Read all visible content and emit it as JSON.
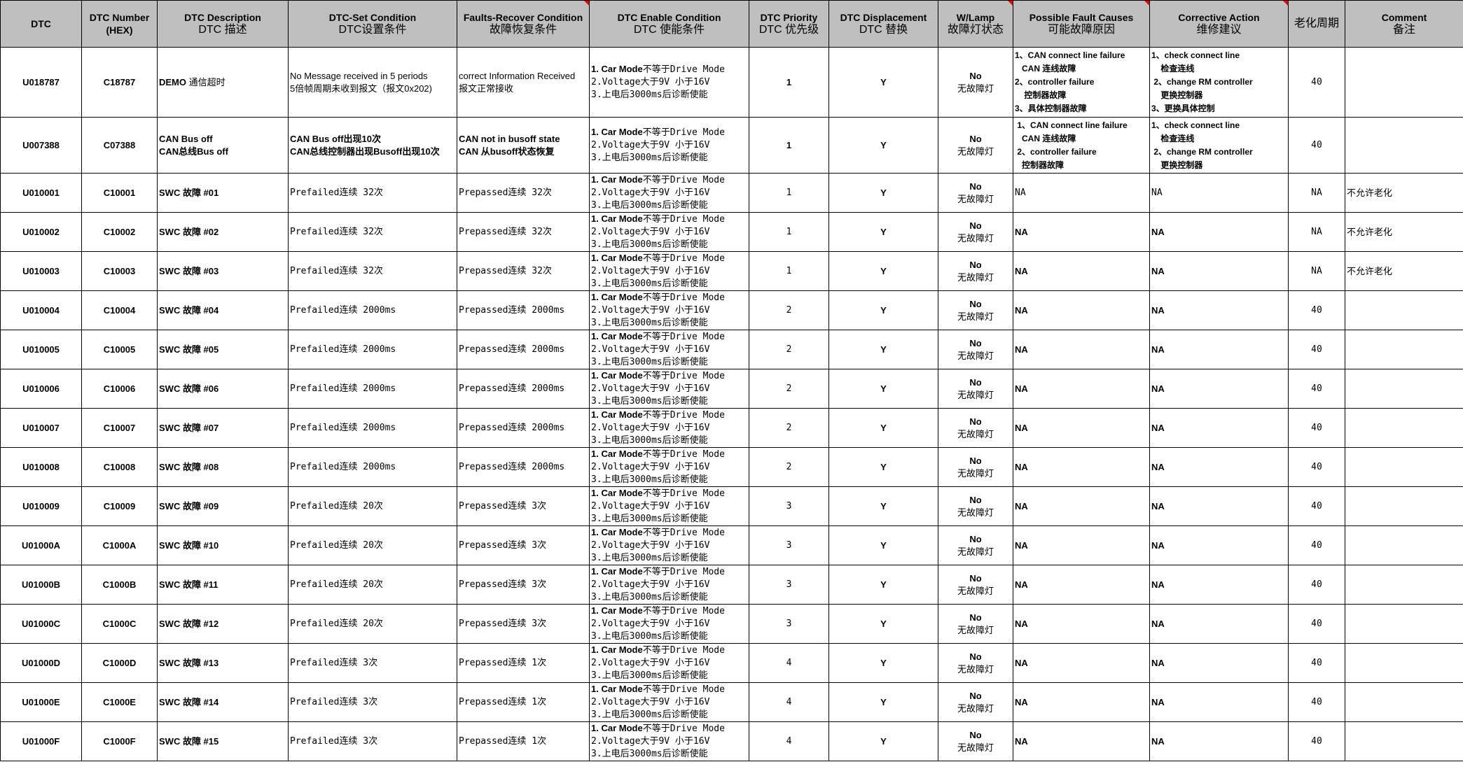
{
  "headers": [
    {
      "en": "DTC",
      "zh": ""
    },
    {
      "en": "DTC Number",
      "zh": "(HEX)"
    },
    {
      "en": "DTC Description",
      "zh": "DTC 描述"
    },
    {
      "en": "DTC-Set Condition",
      "zh": "DTC设置条件"
    },
    {
      "en": "Faults-Recover Condition",
      "zh": "故障恢复条件"
    },
    {
      "en": "DTC Enable Condition",
      "zh": "DTC 使能条件"
    },
    {
      "en": "DTC Priority",
      "zh": "DTC 优先级"
    },
    {
      "en": "DTC Displacement",
      "zh": "DTC 替换"
    },
    {
      "en": "W/Lamp",
      "zh": "故障灯状态"
    },
    {
      "en": "Possible Fault Causes",
      "zh": "可能故障原因"
    },
    {
      "en": "Corrective Action",
      "zh": "维修建议"
    },
    {
      "en": "",
      "zh": "老化周期"
    },
    {
      "en": "Comment",
      "zh": "备注"
    }
  ],
  "comment_marker_color": "#e00000",
  "header_bg": "#bfbfbf",
  "enable_condition": {
    "l1_bold": "1. Car Mode",
    "l1": "不等于Drive Mode",
    "l2": "2.Voltage大于9V 小于16V",
    "l3": "3.上电后3000ms后诊断使能"
  },
  "lamp": {
    "en": "No",
    "zh": "无故障灯"
  },
  "rows": [
    {
      "dtc": "U018787",
      "hex": "C18787",
      "desc_b": "DEMO",
      "desc": " 通信超时",
      "set": [
        "No Message received in 5 periods",
        "5倍帧周期未收到报文（报文0x202)"
      ],
      "rec": [
        "correct Information Received",
        "报文正常接收"
      ],
      "priority": "1",
      "disp": "Y",
      "causes": [
        "1、CAN connect line failure",
        "   CAN 连线故障",
        "2、controller failure",
        "    控制器故障",
        "3、具体控制器故障"
      ],
      "actions": [
        "1、check connect line",
        "    检查连线",
        " 2、change RM controller",
        "    更换控制器",
        "3、更换具体控制"
      ],
      "aging": "40",
      "comment": ""
    },
    {
      "dtc": "U007388",
      "hex": "C07388",
      "desc_b": "",
      "desc": "",
      "desc_lines": [
        "CAN Bus off",
        "CAN总线Bus off"
      ],
      "set": [
        "CAN Bus off出现10次",
        "CAN总线控制器出现Busoff出现10次"
      ],
      "rec": [
        "CAN not in busoff state",
        "CAN 从busoff状态恢复"
      ],
      "priority": "1",
      "disp": "Y",
      "causes": [
        " 1、CAN connect line failure",
        "   CAN 连线故障",
        " 2、controller failure",
        "   控制器故障"
      ],
      "actions": [
        "1、check connect line",
        "    检查连线",
        " 2、change RM controller",
        "    更换控制器"
      ],
      "aging": "40",
      "comment": ""
    },
    {
      "dtc": "U010001",
      "hex": "C10001",
      "desc": "SWC 故障 #01",
      "set1": "Prefailed连续 32次",
      "rec1": "Prepassed连续 32次",
      "priority": "1",
      "disp": "Y",
      "cause": "NA",
      "action": "NA",
      "aging": "NA",
      "comment": "不允许老化",
      "na_plain": true
    },
    {
      "dtc": "U010002",
      "hex": "C10002",
      "desc": "SWC 故障 #02",
      "set1": "Prefailed连续 32次",
      "rec1": "Prepassed连续 32次",
      "priority": "1",
      "disp": "Y",
      "cause": "NA",
      "action": "NA",
      "aging": "NA",
      "comment": "不允许老化"
    },
    {
      "dtc": "U010003",
      "hex": "C10003",
      "desc": "SWC 故障 #03",
      "set1": "Prefailed连续 32次",
      "rec1": "Prepassed连续 32次",
      "priority": "1",
      "disp": "Y",
      "cause": "NA",
      "action": "NA",
      "aging": "NA",
      "comment": "不允许老化"
    },
    {
      "dtc": "U010004",
      "hex": "C10004",
      "desc": "SWC 故障 #04",
      "set1": "Prefailed连续 2000ms",
      "rec1": "Prepassed连续 2000ms",
      "priority": "2",
      "disp": "Y",
      "cause": "NA",
      "action": "NA",
      "aging": "40",
      "comment": ""
    },
    {
      "dtc": "U010005",
      "hex": "C10005",
      "desc": "SWC 故障 #05",
      "set1": "Prefailed连续 2000ms",
      "rec1": "Prepassed连续 2000ms",
      "priority": "2",
      "disp": "Y",
      "cause": "NA",
      "action": "NA",
      "aging": "40",
      "comment": ""
    },
    {
      "dtc": "U010006",
      "hex": "C10006",
      "desc": "SWC 故障 #06",
      "set1": "Prefailed连续 2000ms",
      "rec1": "Prepassed连续 2000ms",
      "priority": "2",
      "disp": "Y",
      "cause": "NA",
      "action": "NA",
      "aging": "40",
      "comment": ""
    },
    {
      "dtc": "U010007",
      "hex": "C10007",
      "desc": "SWC 故障 #07",
      "set1": "Prefailed连续 2000ms",
      "rec1": "Prepassed连续 2000ms",
      "priority": "2",
      "disp": "Y",
      "cause": "NA",
      "action": "NA",
      "aging": "40",
      "comment": ""
    },
    {
      "dtc": "U010008",
      "hex": "C10008",
      "desc": "SWC 故障 #08",
      "set1": "Prefailed连续 2000ms",
      "rec1": "Prepassed连续 2000ms",
      "priority": "2",
      "disp": "Y",
      "cause": "NA",
      "action": "NA",
      "aging": "40",
      "comment": ""
    },
    {
      "dtc": "U010009",
      "hex": "C10009",
      "desc": "SWC 故障 #09",
      "set1": "Prefailed连续 20次",
      "rec1": "Prepassed连续 3次",
      "priority": "3",
      "disp": "Y",
      "cause": "NA",
      "action": "NA",
      "aging": "40",
      "comment": ""
    },
    {
      "dtc": "U01000A",
      "hex": "C1000A",
      "desc": "SWC 故障 #10",
      "set1": "Prefailed连续 20次",
      "rec1": "Prepassed连续 3次",
      "priority": "3",
      "disp": "Y",
      "cause": "NA",
      "action": "NA",
      "aging": "40",
      "comment": ""
    },
    {
      "dtc": "U01000B",
      "hex": "C1000B",
      "desc": "SWC 故障 #11",
      "set1": "Prefailed连续 20次",
      "rec1": "Prepassed连续 3次",
      "priority": "3",
      "disp": "Y",
      "cause": "NA",
      "action": "NA",
      "aging": "40",
      "comment": ""
    },
    {
      "dtc": "U01000C",
      "hex": "C1000C",
      "desc": "SWC 故障 #12",
      "set1": "Prefailed连续 20次",
      "rec1": "Prepassed连续 3次",
      "priority": "3",
      "disp": "Y",
      "cause": "NA",
      "action": "NA",
      "aging": "40",
      "comment": ""
    },
    {
      "dtc": "U01000D",
      "hex": "C1000D",
      "desc": "SWC 故障 #13",
      "set1": "Prefailed连续 3次",
      "rec1": "Prepassed连续 1次",
      "priority": "4",
      "disp": "Y",
      "cause": "NA",
      "action": "NA",
      "aging": "40",
      "comment": ""
    },
    {
      "dtc": "U01000E",
      "hex": "C1000E",
      "desc": "SWC 故障 #14",
      "set1": "Prefailed连续 3次",
      "rec1": "Prepassed连续 1次",
      "priority": "4",
      "disp": "Y",
      "cause": "NA",
      "action": "NA",
      "aging": "40",
      "comment": ""
    },
    {
      "dtc": "U01000F",
      "hex": "C1000F",
      "desc": "SWC 故障 #15",
      "set1": "Prefailed连续 3次",
      "rec1": "Prepassed连续 1次",
      "priority": "4",
      "disp": "Y",
      "cause": "NA",
      "action": "NA",
      "aging": "40",
      "comment": ""
    }
  ]
}
